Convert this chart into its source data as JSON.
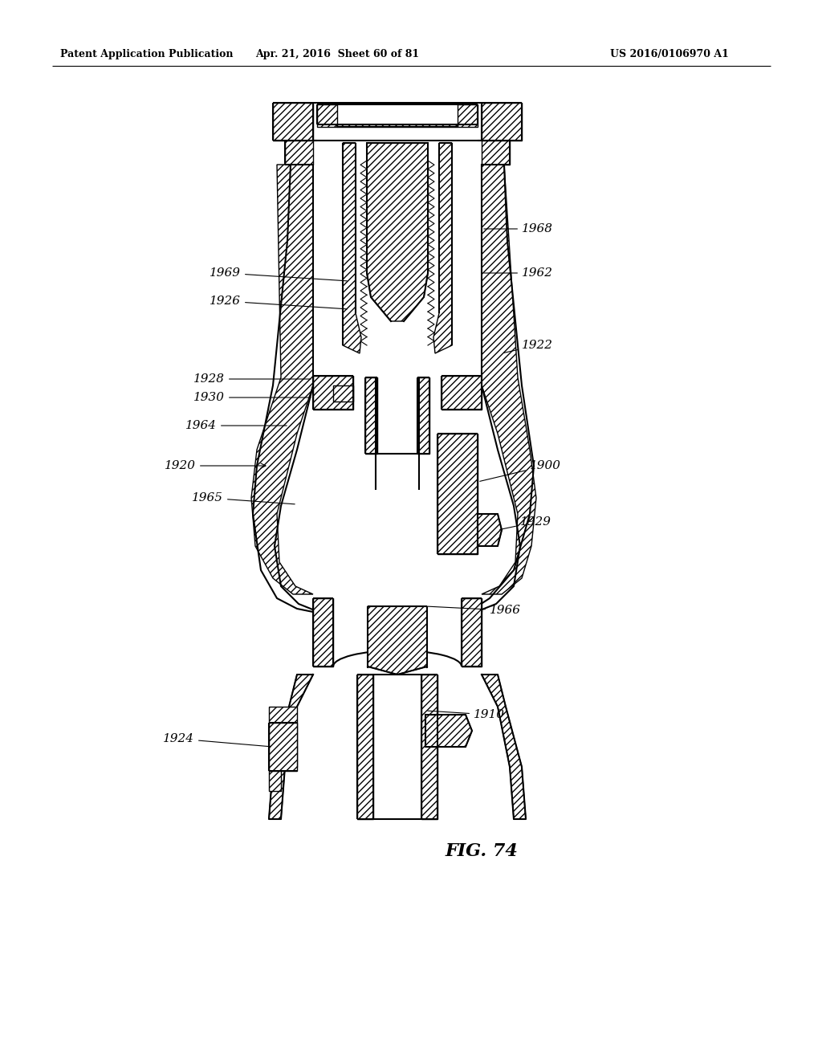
{
  "header_left": "Patent Application Publication",
  "header_center": "Apr. 21, 2016  Sheet 60 of 81",
  "header_right": "US 2016/0106970 A1",
  "fig_label": "FIG. 74",
  "background_color": "#ffffff",
  "line_color": "#000000",
  "hatch_color": "#000000",
  "figsize": [
    10.24,
    13.2
  ],
  "dpi": 100
}
